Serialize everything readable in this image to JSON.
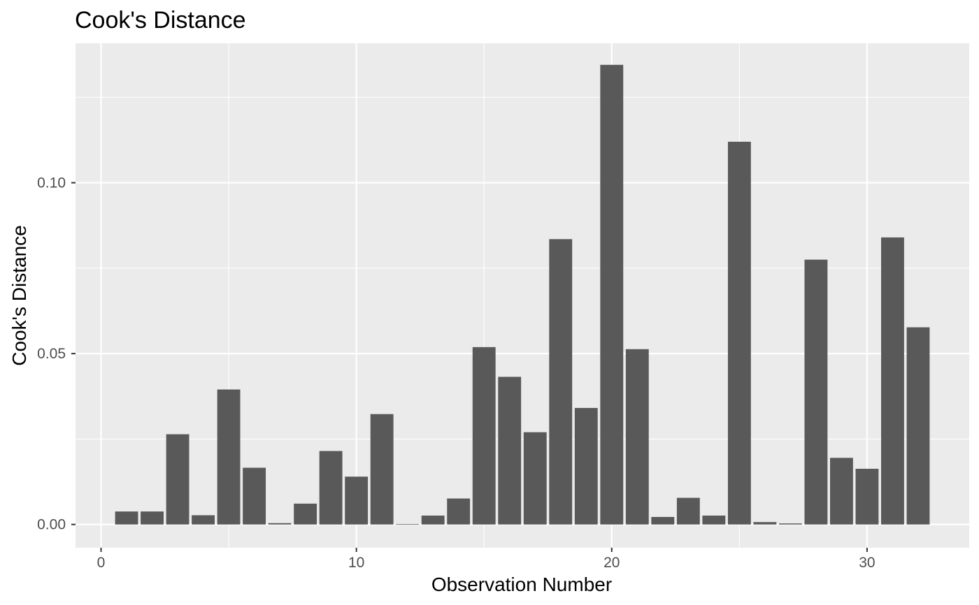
{
  "chart_data": {
    "type": "bar",
    "title": "Cook's Distance",
    "xlabel": "Observation Number",
    "ylabel": "Cook's Distance",
    "xlim": [
      -1,
      34
    ],
    "ylim": [
      -0.0068,
      0.1408
    ],
    "x_ticks": [
      0,
      10,
      20,
      30
    ],
    "x_minor_ticks": [
      5,
      15,
      25
    ],
    "x_tick_labels": [
      "0",
      "10",
      "20",
      "30"
    ],
    "y_ticks": [
      0.0,
      0.05,
      0.1
    ],
    "y_minor_ticks": [
      0.025,
      0.075,
      0.125
    ],
    "y_tick_labels": [
      "0.00",
      "0.05",
      "0.10"
    ],
    "grid": true,
    "colors": {
      "bar": "#595959",
      "panel_background": "#ebebeb",
      "grid": "#ffffff",
      "tick_label": "#4d4d4d"
    },
    "x": [
      1,
      2,
      3,
      4,
      5,
      6,
      7,
      8,
      9,
      10,
      11,
      12,
      13,
      14,
      15,
      16,
      17,
      18,
      19,
      20,
      21,
      22,
      23,
      24,
      25,
      26,
      27,
      28,
      29,
      30,
      31,
      32
    ],
    "values": [
      0.0038,
      0.0038,
      0.0264,
      0.0027,
      0.0395,
      0.0166,
      0.0004,
      0.0061,
      0.0215,
      0.014,
      0.0323,
      0.0001,
      0.0026,
      0.0076,
      0.0519,
      0.0432,
      0.027,
      0.0835,
      0.0341,
      0.1345,
      0.0513,
      0.0022,
      0.0078,
      0.0026,
      0.112,
      0.0007,
      0.0003,
      0.0775,
      0.0195,
      0.0163,
      0.084,
      0.0577
    ]
  }
}
